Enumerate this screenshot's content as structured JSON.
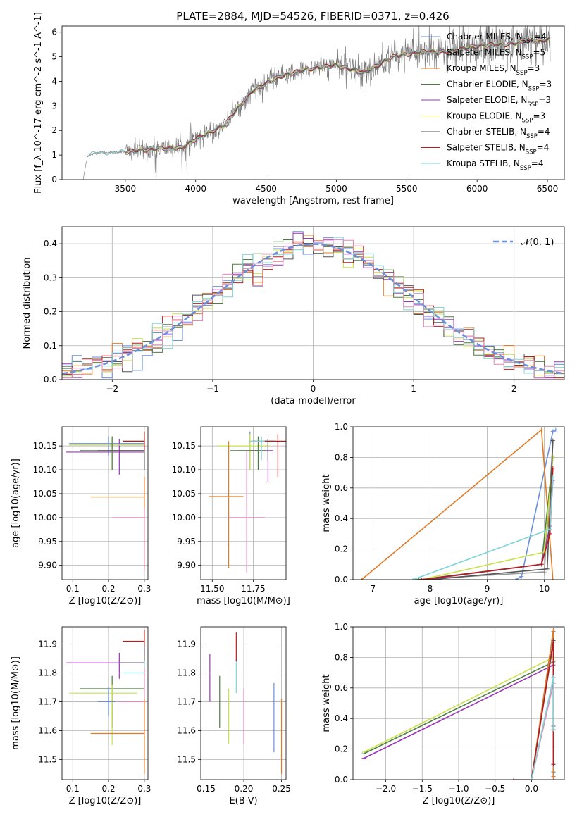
{
  "figure": {
    "title": "PLATE=2884, MJD=54526, FIBERID=0371, z=0.426"
  },
  "colors": {
    "Chabrier MILES": "#6a8fdc",
    "Salpeter MILES": "#9a9a9a",
    "Kroupa MILES": "#e07b26",
    "Chabrier ELODIE": "#4f7d42",
    "Salpeter ELODIE": "#9c34b8",
    "Kroupa ELODIE": "#c9e048",
    "Chabrier STELIB": "#555555",
    "Salpeter STELIB": "#b81c1c",
    "Kroupa STELIB": "#7ed4d8",
    "Pink": "#e488b4"
  },
  "chart_data": [
    {
      "type": "line",
      "title": "PLATE=2884, MJD=54526, FIBERID=0371, z=0.426",
      "xlabel": "wavelength [Angstrom, rest frame]",
      "ylabel": "Flux [f_λ 10^-17 erg cm^-2 s^-1 A^-1]",
      "xlim": [
        3050,
        6620
      ],
      "ylim": [
        0,
        6.25
      ],
      "xticks": [
        3500,
        4000,
        4500,
        5000,
        5500,
        6000,
        6500
      ],
      "yticks": [
        0,
        1,
        2,
        3,
        4,
        5,
        6
      ],
      "legend_position": "top-right",
      "legend": [
        "Chabrier MILES, N_SSP=4",
        "Salpeter MILES, N_SSP=5",
        "Kroupa MILES, N_SSP=3",
        "Chabrier ELODIE, N_SSP=3",
        "Salpeter ELODIE, N_SSP=3",
        "Kroupa ELODIE, N_SSP=3",
        "Chabrier STELIB, N_SSP=4",
        "Salpeter STELIB, N_SSP=4",
        "Kroupa STELIB, N_SSP=4"
      ],
      "series_keys": [
        "Chabrier MILES",
        "Salpeter MILES",
        "Kroupa MILES",
        "Chabrier ELODIE",
        "Salpeter ELODIE",
        "Kroupa ELODIE",
        "Chabrier STELIB",
        "Salpeter STELIB",
        "Kroupa STELIB"
      ],
      "data_trend": {
        "x": [
          3200,
          3230,
          3300,
          3500,
          3700,
          3900,
          4000,
          4200,
          4400,
          4600,
          4800,
          5000,
          5200,
          5400,
          5600,
          5800,
          6000,
          6200,
          6400,
          6520
        ],
        "y": [
          0,
          0.95,
          1.1,
          1.12,
          1.25,
          1.3,
          1.65,
          2.2,
          3.6,
          4.2,
          4.5,
          4.65,
          4.35,
          5.0,
          5.2,
          5.2,
          5.45,
          5.5,
          5.65,
          5.7
        ]
      }
    },
    {
      "type": "line",
      "xlabel": "(data-model)/error",
      "ylabel": "Normed distribution",
      "xlim": [
        -2.5,
        2.5
      ],
      "ylim": [
        0,
        0.45
      ],
      "xticks": [
        -2,
        -1,
        0,
        1,
        2
      ],
      "yticks": [
        0.0,
        0.1,
        0.2,
        0.3,
        0.4
      ],
      "reference_curve": "N(0, 1)",
      "legend": [
        "𝒩(0, 1)"
      ],
      "legend_position": "top-right",
      "histogram_bin_width": 0.1
    },
    {
      "type": "scatter",
      "xlabel": "Z [log10(Z/Z⊙)]",
      "ylabel": "age  [log10(age/yr)]",
      "xlim": [
        0.07,
        0.31
      ],
      "ylim": [
        9.87,
        10.19
      ],
      "xticks": [
        0.1,
        0.2,
        0.3
      ],
      "yticks": [
        9.9,
        9.95,
        10.0,
        10.05,
        10.1,
        10.15
      ],
      "points": [
        {
          "k": "Chabrier MILES",
          "x": 0.2,
          "y": 10.155,
          "xe": [
            0.09,
            0.3
          ],
          "ye": [
            10.13,
            10.17
          ]
        },
        {
          "k": "Salpeter ELODIE",
          "x": 0.23,
          "y": 10.137,
          "xe": [
            0.08,
            0.3
          ],
          "ye": [
            10.09,
            10.165
          ]
        },
        {
          "k": "Kroupa ELODIE",
          "x": 0.21,
          "y": 10.152,
          "xe": [
            0.09,
            0.3
          ],
          "ye": [
            10.1,
            10.17
          ]
        },
        {
          "k": "Chabrier ELODIE",
          "x": 0.21,
          "y": 10.14,
          "xe": [
            0.12,
            0.3
          ],
          "ye": [
            10.1,
            10.17
          ]
        },
        {
          "k": "Chabrier STELIB",
          "x": 0.3,
          "y": 10.14,
          "xe": [
            0.17,
            0.3
          ],
          "ye": [
            10.1,
            10.165
          ]
        },
        {
          "k": "Kroupa STELIB",
          "x": 0.3,
          "y": 10.16,
          "xe": [
            0.24,
            0.3
          ],
          "ye": [
            10.14,
            10.17
          ]
        },
        {
          "k": "Salpeter STELIB",
          "x": 0.3,
          "y": 10.16,
          "xe": [
            0.24,
            0.3
          ],
          "ye": [
            10.14,
            10.18
          ]
        },
        {
          "k": "Kroupa MILES",
          "x": 0.3,
          "y": 10.043,
          "xe": [
            0.15,
            0.3
          ],
          "ye": [
            9.895,
            10.085
          ]
        },
        {
          "k": "Pink",
          "x": 0.3,
          "y": 10.0,
          "xe": [
            0.21,
            0.3
          ],
          "ye": [
            9.89,
            10.02
          ]
        }
      ]
    },
    {
      "type": "scatter",
      "xlabel": "mass [log10(M/M⊙)]",
      "xlim": [
        11.43,
        11.95
      ],
      "ylim": [
        9.87,
        10.19
      ],
      "xticks": [
        11.5,
        11.75
      ],
      "yticks": [
        9.9,
        9.95,
        10.0,
        10.05,
        10.1,
        10.15
      ],
      "points": [
        {
          "k": "Chabrier MILES",
          "x": 11.73,
          "y": 10.14,
          "xe": [
            11.66,
            11.78
          ],
          "ye": [
            10.1,
            10.18
          ]
        },
        {
          "k": "Salpeter ELODIE",
          "x": 11.84,
          "y": 10.14,
          "xe": [
            11.73,
            11.87
          ],
          "ye": [
            10.075,
            10.165
          ]
        },
        {
          "k": "Kroupa ELODIE",
          "x": 11.73,
          "y": 10.15,
          "xe": [
            11.53,
            11.85
          ],
          "ye": [
            10.1,
            10.175
          ]
        },
        {
          "k": "Chabrier ELODIE",
          "x": 11.78,
          "y": 10.14,
          "xe": [
            11.61,
            11.83
          ],
          "ye": [
            10.1,
            10.17
          ]
        },
        {
          "k": "Chabrier STELIB",
          "x": 11.84,
          "y": 10.16,
          "xe": [
            11.74,
            11.88
          ],
          "ye": [
            10.12,
            10.165
          ]
        },
        {
          "k": "Kroupa STELIB",
          "x": 11.8,
          "y": 10.16,
          "xe": [
            11.73,
            11.88
          ],
          "ye": [
            10.12,
            10.17
          ]
        },
        {
          "k": "Salpeter STELIB",
          "x": 11.9,
          "y": 10.16,
          "xe": [
            11.82,
            11.95
          ],
          "ye": [
            10.085,
            10.175
          ]
        },
        {
          "k": "Kroupa MILES",
          "x": 11.6,
          "y": 10.044,
          "xe": [
            11.48,
            11.69
          ],
          "ye": [
            9.895,
            10.16
          ]
        },
        {
          "k": "Pink",
          "x": 11.71,
          "y": 10.0,
          "xe": [
            11.6,
            11.82
          ],
          "ye": [
            9.885,
            10.14
          ]
        }
      ]
    },
    {
      "type": "line",
      "xlabel": "age  [log10(age/yr)]",
      "ylabel": "mass weight",
      "xlim": [
        6.65,
        10.35
      ],
      "ylim": [
        0,
        1.0
      ],
      "xticks": [
        7,
        8,
        9,
        10
      ],
      "yticks": [
        0.0,
        0.2,
        0.4,
        0.6,
        0.8,
        1.0
      ],
      "series": [
        {
          "k": "Chabrier MILES",
          "x": [
            9.5,
            9.6,
            10.15,
            10.2
          ],
          "y": [
            0.0,
            0.02,
            0.97,
            0.98
          ]
        },
        {
          "k": "Salpeter MILES",
          "x": [
            7.7,
            10.0,
            10.15
          ],
          "y": [
            0.0,
            0.05,
            0.9
          ]
        },
        {
          "k": "Kroupa MILES",
          "x": [
            6.8,
            9.95,
            10.15
          ],
          "y": [
            0.0,
            0.98,
            0.0
          ]
        },
        {
          "k": "Chabrier ELODIE",
          "x": [
            7.8,
            9.95,
            10.15
          ],
          "y": [
            0.0,
            0.1,
            0.8
          ]
        },
        {
          "k": "Salpeter ELODIE",
          "x": [
            7.9,
            9.95,
            10.1,
            10.15
          ],
          "y": [
            0.0,
            0.1,
            0.35,
            0.65
          ]
        },
        {
          "k": "Kroupa ELODIE",
          "x": [
            7.85,
            10.0,
            10.15
          ],
          "y": [
            0.0,
            0.18,
            0.8
          ]
        },
        {
          "k": "Chabrier STELIB",
          "x": [
            8.0,
            10.05,
            10.15
          ],
          "y": [
            0.0,
            0.07,
            0.91
          ]
        },
        {
          "k": "Salpeter STELIB",
          "x": [
            7.85,
            9.95,
            10.1,
            10.15
          ],
          "y": [
            0.0,
            0.1,
            0.3,
            0.73
          ]
        },
        {
          "k": "Kroupa STELIB",
          "x": [
            7.7,
            10.1,
            10.15
          ],
          "y": [
            0.0,
            0.33,
            0.67
          ]
        }
      ]
    },
    {
      "type": "scatter",
      "xlabel": "Z [log10(Z/Z⊙)]",
      "ylabel": "mass [log10(M/M⊙)]",
      "xlim": [
        0.07,
        0.31
      ],
      "ylim": [
        11.43,
        11.96
      ],
      "xticks": [
        0.1,
        0.2,
        0.3
      ],
      "yticks": [
        11.5,
        11.6,
        11.7,
        11.8,
        11.9
      ],
      "points": [
        {
          "k": "Salpeter STELIB",
          "x": 0.3,
          "y": 11.91,
          "xe": [
            0.24,
            0.3
          ],
          "ye": [
            11.86,
            11.95
          ]
        },
        {
          "k": "Salpeter ELODIE",
          "x": 0.23,
          "y": 11.835,
          "xe": [
            0.08,
            0.3
          ],
          "ye": [
            11.78,
            11.87
          ]
        },
        {
          "k": "Chabrier STELIB",
          "x": 0.3,
          "y": 11.835,
          "xe": [
            0.23,
            0.3
          ],
          "ye": [
            11.79,
            11.9
          ]
        },
        {
          "k": "Kroupa STELIB",
          "x": 0.3,
          "y": 11.8,
          "xe": [
            0.24,
            0.3
          ],
          "ye": [
            11.74,
            11.84
          ]
        },
        {
          "k": "Chabrier ELODIE",
          "x": 0.21,
          "y": 11.745,
          "xe": [
            0.12,
            0.3
          ],
          "ye": [
            11.61,
            11.79
          ]
        },
        {
          "k": "Kroupa ELODIE",
          "x": 0.21,
          "y": 11.73,
          "xe": [
            0.09,
            0.28
          ],
          "ye": [
            11.55,
            11.76
          ]
        },
        {
          "k": "Chabrier MILES",
          "x": 0.2,
          "y": 11.7,
          "xe": [
            0.17,
            0.3
          ],
          "ye": [
            11.65,
            11.75
          ]
        },
        {
          "k": "Pink",
          "x": 0.3,
          "y": 11.7,
          "xe": [
            0.22,
            0.3
          ],
          "ye": [
            11.6,
            11.82
          ]
        },
        {
          "k": "Kroupa MILES",
          "x": 0.3,
          "y": 11.59,
          "xe": [
            0.15,
            0.3
          ],
          "ye": [
            11.45,
            11.71
          ]
        }
      ]
    },
    {
      "type": "scatter",
      "xlabel": "E(B-V)",
      "xlim": [
        0.143,
        0.256
      ],
      "ylim": [
        11.43,
        11.96
      ],
      "xticks": [
        0.15,
        0.2,
        0.25
      ],
      "yticks": [
        11.5,
        11.6,
        11.7,
        11.8,
        11.9
      ],
      "points": [
        {
          "k": "Salpeter ELODIE",
          "x": 0.155,
          "y": 11.78,
          "ye": [
            11.7,
            11.865
          ]
        },
        {
          "k": "Chabrier ELODIE",
          "x": 0.168,
          "y": 11.7,
          "ye": [
            11.61,
            11.79
          ]
        },
        {
          "k": "Kroupa ELODIE",
          "x": 0.18,
          "y": 11.66,
          "ye": [
            11.555,
            11.745
          ]
        },
        {
          "k": "Kroupa STELIB",
          "x": 0.19,
          "y": 11.8,
          "ye": [
            11.73,
            11.85
          ]
        },
        {
          "k": "Salpeter STELIB",
          "x": 0.19,
          "y": 11.89,
          "ye": [
            11.84,
            11.94
          ]
        },
        {
          "k": "Pink",
          "x": 0.2,
          "y": 11.65,
          "ye": [
            11.555,
            11.745
          ]
        },
        {
          "k": "Chabrier MILES",
          "x": 0.24,
          "y": 11.66,
          "ye": [
            11.525,
            11.765
          ]
        },
        {
          "k": "Kroupa MILES",
          "x": 0.25,
          "y": 11.59,
          "ye": [
            11.45,
            11.71
          ]
        }
      ]
    },
    {
      "type": "line",
      "xlabel": "Z [log10(Z/Z⊙)]",
      "ylabel": "mass weight",
      "xlim": [
        -2.45,
        0.45
      ],
      "ylim": [
        0,
        1.0
      ],
      "xticks": [
        -2.0,
        -1.5,
        -1.0,
        -0.5,
        0.0
      ],
      "yticks": [
        0.0,
        0.2,
        0.4,
        0.6,
        0.8,
        1.0
      ],
      "series": [
        {
          "k": "Kroupa ELODIE",
          "x": [
            -2.3,
            0.3,
            0.3
          ],
          "y": [
            0.18,
            0.8,
            0.02
          ]
        },
        {
          "k": "Chabrier ELODIE",
          "x": [
            -2.3,
            0.3,
            0.3
          ],
          "y": [
            0.17,
            0.77,
            0.05
          ]
        },
        {
          "k": "Salpeter ELODIE",
          "x": [
            -2.3,
            0.3,
            0.3
          ],
          "y": [
            0.14,
            0.75,
            0.1
          ]
        },
        {
          "k": "Pink",
          "x": [
            -0.25,
            0.0,
            0.3,
            0.3
          ],
          "y": [
            0.0,
            0.0,
            0.63,
            0.0
          ]
        },
        {
          "k": "Chabrier MILES",
          "x": [
            0.0,
            0.3,
            0.3
          ],
          "y": [
            0.0,
            0.97,
            0.03
          ]
        },
        {
          "k": "Kroupa MILES",
          "x": [
            0.0,
            0.3,
            0.3
          ],
          "y": [
            0.0,
            0.98,
            0.02
          ]
        },
        {
          "k": "Salpeter MILES",
          "x": [
            0.0,
            0.3,
            0.3
          ],
          "y": [
            0.0,
            0.91,
            0.09
          ]
        },
        {
          "k": "Chabrier STELIB",
          "x": [
            0.0,
            0.3,
            0.3
          ],
          "y": [
            0.0,
            0.91,
            0.35
          ]
        },
        {
          "k": "Salpeter STELIB",
          "x": [
            0.0,
            0.3,
            0.3
          ],
          "y": [
            0.0,
            0.9,
            0.1
          ]
        },
        {
          "k": "Kroupa STELIB",
          "x": [
            0.0,
            0.3,
            0.3
          ],
          "y": [
            0.0,
            0.67,
            0.33
          ]
        }
      ]
    }
  ]
}
